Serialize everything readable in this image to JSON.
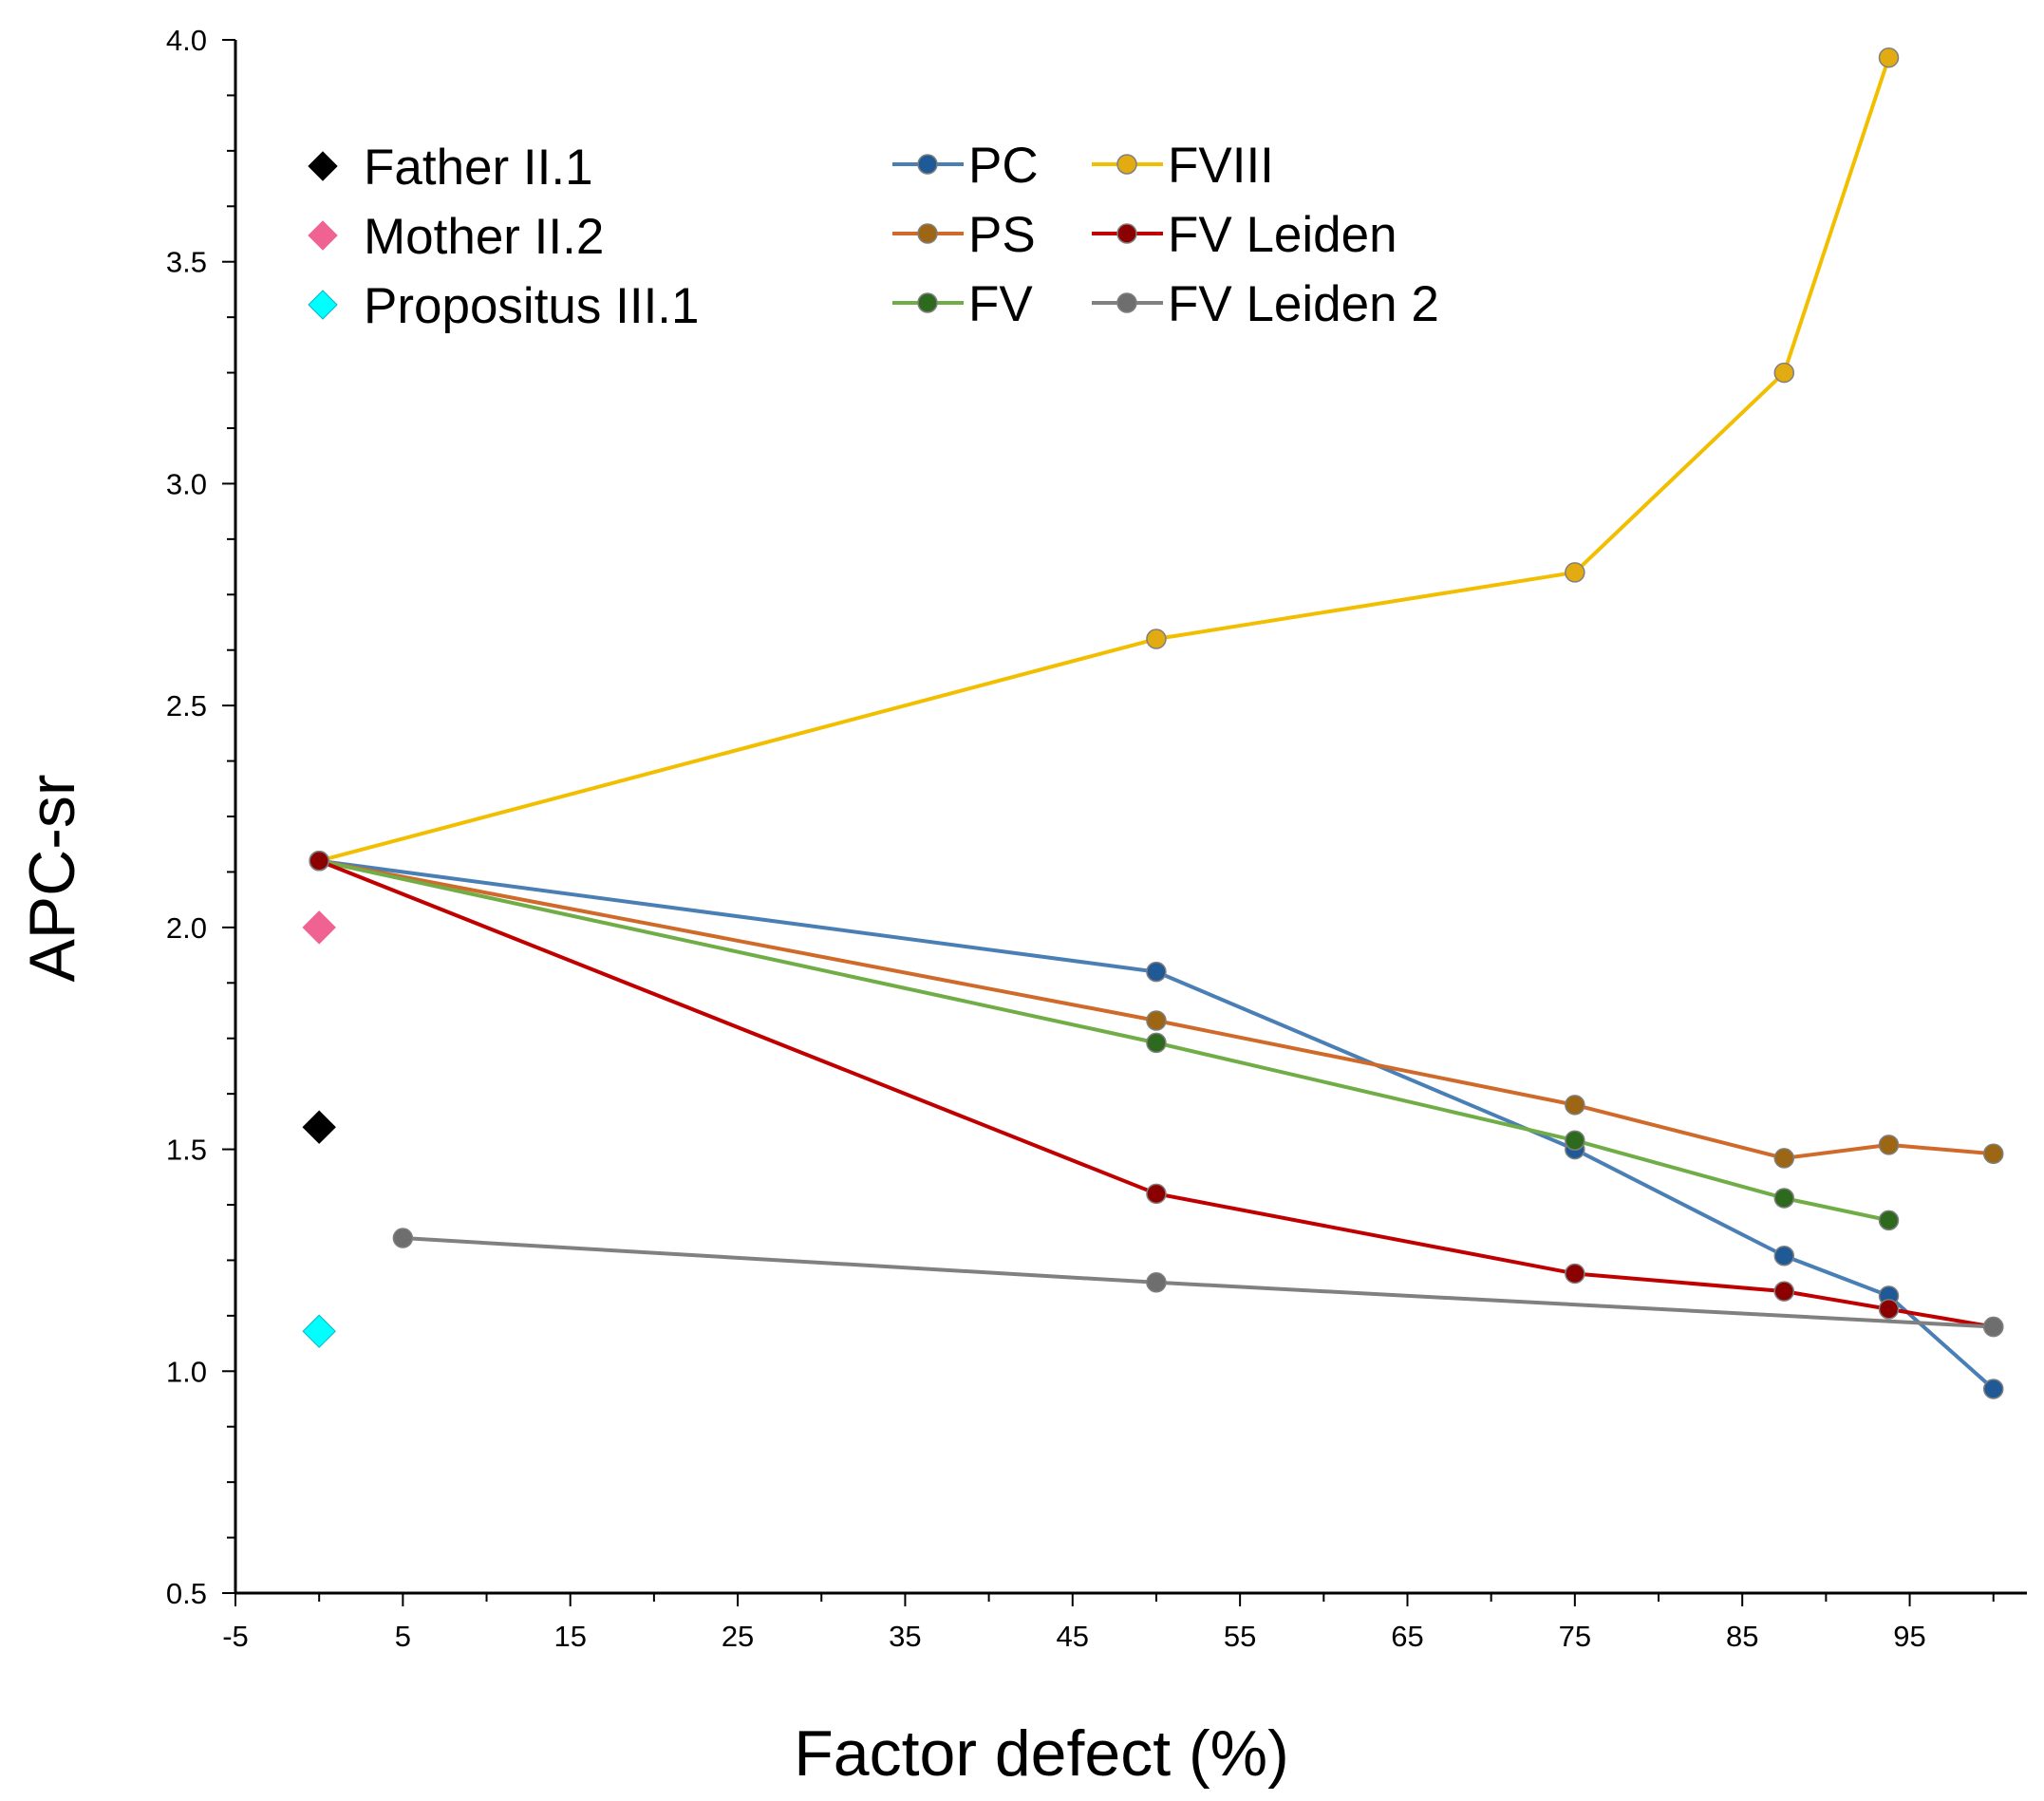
{
  "chart_data": {
    "type": "line",
    "title": "",
    "xlabel": "Factor defect (%)",
    "ylabel": "APC-sr",
    "xlim": [
      -5,
      102
    ],
    "ylim": [
      0.5,
      4.0
    ],
    "x_ticks": [
      "-5",
      "5",
      "15",
      "25",
      "35",
      "45",
      "55",
      "65",
      "75",
      "85",
      "95"
    ],
    "y_ticks": [
      "0.5",
      "1.0",
      "1.5",
      "2.0",
      "2.5",
      "3.0",
      "3.5",
      "4.0"
    ],
    "grid": false,
    "series": [
      {
        "name": "PC",
        "color": "#4a7fb5",
        "marker_fill": "#1f5a96",
        "x": [
          0,
          50,
          75,
          87.5,
          93.75,
          100
        ],
        "y": [
          2.15,
          1.9,
          1.5,
          1.26,
          1.17,
          0.96
        ]
      },
      {
        "name": "PS",
        "color": "#d06a2a",
        "marker_fill": "#9c6614",
        "x": [
          0,
          50,
          75,
          87.5,
          93.75,
          100
        ],
        "y": [
          2.15,
          1.79,
          1.6,
          1.48,
          1.51,
          1.49
        ]
      },
      {
        "name": "FV",
        "color": "#70ad47",
        "marker_fill": "#2e6a1e",
        "x": [
          0,
          50,
          75,
          87.5,
          93.75
        ],
        "y": [
          2.15,
          1.74,
          1.52,
          1.39,
          1.34
        ]
      },
      {
        "name": "FVIII",
        "color": "#f2be00",
        "marker_fill": "#e3ab12",
        "x": [
          0,
          50,
          75,
          87.5,
          93.75
        ],
        "y": [
          2.15,
          2.65,
          2.8,
          3.25,
          3.96
        ]
      },
      {
        "name": "FV Leiden",
        "color": "#c00000",
        "marker_fill": "#8b0000",
        "x": [
          0,
          50,
          75,
          87.5,
          93.75,
          100
        ],
        "y": [
          2.15,
          1.4,
          1.22,
          1.18,
          1.14,
          1.1
        ]
      },
      {
        "name": "FV Leiden 2",
        "color": "#808080",
        "marker_fill": "#6e6e6e",
        "x": [
          5,
          50,
          100
        ],
        "y": [
          1.3,
          1.2,
          1.1
        ]
      }
    ],
    "points": [
      {
        "name": "Father II.1",
        "color": "#000000",
        "x": 0,
        "y": 1.55
      },
      {
        "name": "Mother II.2",
        "color": "#f06292",
        "x": 0,
        "y": 2.0
      },
      {
        "name": "Propositus III.1",
        "color": "#00ffff",
        "x": 0,
        "y": 1.09
      }
    ],
    "legend": {
      "position": "top-left",
      "points_order": [
        "Father II.1",
        "Mother II.2",
        "Propositus III.1"
      ],
      "series_order": [
        "PC",
        "PS",
        "FV",
        "FVIII",
        "FV Leiden",
        "FV Leiden 2"
      ]
    }
  }
}
